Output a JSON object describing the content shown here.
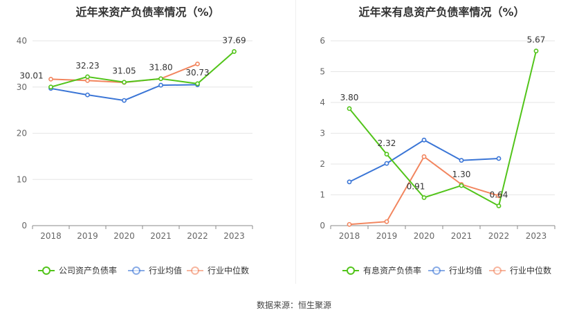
{
  "footer": {
    "source": "数据来源：恒生聚源"
  },
  "chart_data": [
    {
      "type": "line",
      "title": "近年来资产负债率情况（%）",
      "categories": [
        "2018",
        "2019",
        "2020",
        "2021",
        "2022",
        "2023"
      ],
      "ylim": [
        0,
        40
      ],
      "yticks": [
        0,
        10,
        20,
        30,
        40
      ],
      "grid": true,
      "legend_position": "bottom",
      "series": [
        {
          "name": "公司资产负债率",
          "color": "#52c41a",
          "values": [
            30.01,
            32.23,
            31.05,
            31.8,
            30.73,
            37.69
          ],
          "labels": [
            "30.01",
            "32.23",
            "31.05",
            "31.80",
            "30.73",
            "37.69"
          ]
        },
        {
          "name": "行业均值",
          "color": "#3a75d6",
          "values": [
            29.7,
            28.3,
            27.1,
            30.4,
            30.5,
            null
          ]
        },
        {
          "name": "行业中位数",
          "color": "#f2855e",
          "values": [
            31.7,
            31.4,
            31.0,
            31.8,
            35.0,
            null
          ]
        }
      ]
    },
    {
      "type": "line",
      "title": "近年来有息资产负债率情况（%）",
      "categories": [
        "2018",
        "2019",
        "2020",
        "2021",
        "2022",
        "2023"
      ],
      "ylim": [
        0,
        6
      ],
      "yticks": [
        0,
        1,
        2,
        3,
        4,
        5,
        6
      ],
      "grid": true,
      "legend_position": "bottom",
      "series": [
        {
          "name": "有息资产负债率",
          "color": "#52c41a",
          "values": [
            3.8,
            2.32,
            0.91,
            1.3,
            0.64,
            5.67
          ],
          "labels": [
            "3.80",
            "2.32",
            "0.91",
            "1.30",
            "0.64",
            "5.67"
          ]
        },
        {
          "name": "行业均值",
          "color": "#3a75d6",
          "values": [
            1.42,
            2.02,
            2.78,
            2.12,
            2.18,
            null
          ]
        },
        {
          "name": "行业中位数",
          "color": "#f2855e",
          "values": [
            0.04,
            0.13,
            2.24,
            1.34,
            0.97,
            null
          ]
        }
      ]
    }
  ]
}
